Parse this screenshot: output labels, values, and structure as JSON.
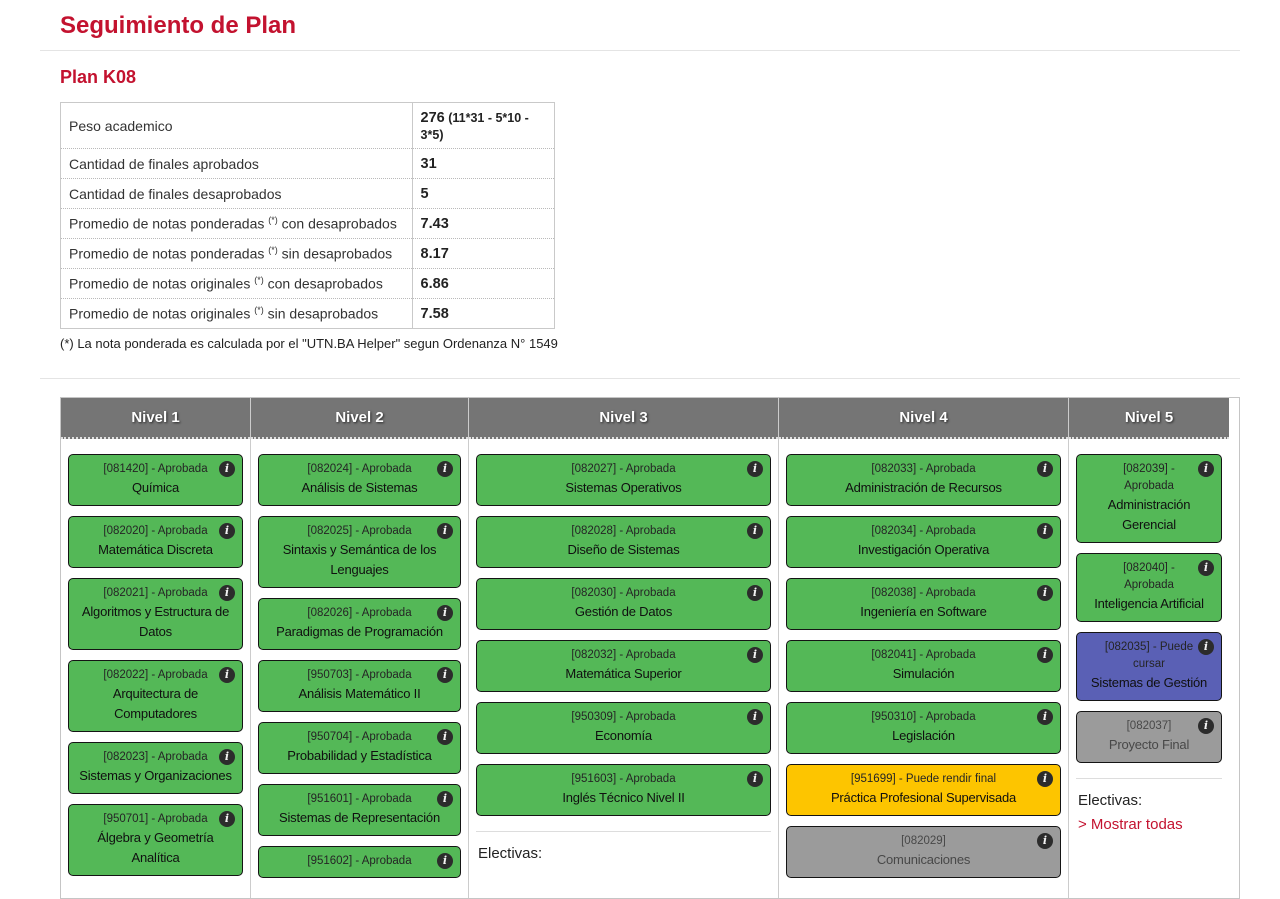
{
  "page": {
    "title": "Seguimiento de Plan",
    "plan_title": "Plan K08"
  },
  "colors": {
    "accent_red": "#c3122f",
    "approved_green": "#54b857",
    "can_take_blue": "#5a60b5",
    "final_yellow": "#fdc500",
    "unavailable_gray": "#9b9b9b",
    "header_gray": "#757575"
  },
  "stats": {
    "rows": [
      {
        "label_pre": "Peso academico",
        "sup": "",
        "label_post": "",
        "value": "276",
        "note": "(11*31 - 5*10 - 3*5)"
      },
      {
        "label_pre": "Cantidad de finales aprobados",
        "sup": "",
        "label_post": "",
        "value": "31",
        "note": ""
      },
      {
        "label_pre": "Cantidad de finales desaprobados",
        "sup": "",
        "label_post": "",
        "value": "5",
        "note": ""
      },
      {
        "label_pre": "Promedio de notas ponderadas ",
        "sup": "(*)",
        "label_post": " con desaprobados",
        "value": "7.43",
        "note": ""
      },
      {
        "label_pre": "Promedio de notas ponderadas ",
        "sup": "(*)",
        "label_post": " sin desaprobados",
        "value": "8.17",
        "note": ""
      },
      {
        "label_pre": "Promedio de notas originales ",
        "sup": "(*)",
        "label_post": " con desaprobados",
        "value": "6.86",
        "note": ""
      },
      {
        "label_pre": "Promedio de notas originales ",
        "sup": "(*)",
        "label_post": " sin desaprobados",
        "value": "7.58",
        "note": ""
      }
    ],
    "footnote": "(*) La nota ponderada es calculada por el \"UTN.BA Helper\" segun Ordenanza N° 1549"
  },
  "levels": {
    "electives_label": "Electivas:",
    "show_all_link": "> Mostrar todas",
    "columns": [
      {
        "header": "Nivel 1",
        "electives": false,
        "show_all": false,
        "cards": [
          {
            "code": "[081420]",
            "status": "Aprobada",
            "name": "Química",
            "state": "approved"
          },
          {
            "code": "[082020]",
            "status": "Aprobada",
            "name": "Matemática Discreta",
            "state": "approved"
          },
          {
            "code": "[082021]",
            "status": "Aprobada",
            "name": "Algoritmos y Estructura de Datos",
            "state": "approved"
          },
          {
            "code": "[082022]",
            "status": "Aprobada",
            "name": "Arquitectura de Computadores",
            "state": "approved"
          },
          {
            "code": "[082023]",
            "status": "Aprobada",
            "name": "Sistemas y Organizaciones",
            "state": "approved"
          },
          {
            "code": "[950701]",
            "status": "Aprobada",
            "name": "Álgebra y Geometría Analítica",
            "state": "approved"
          }
        ]
      },
      {
        "header": "Nivel 2",
        "electives": false,
        "show_all": false,
        "cards": [
          {
            "code": "[082024]",
            "status": "Aprobada",
            "name": "Análisis de Sistemas",
            "state": "approved"
          },
          {
            "code": "[082025]",
            "status": "Aprobada",
            "name": "Sintaxis y Semántica de los Lenguajes",
            "state": "approved"
          },
          {
            "code": "[082026]",
            "status": "Aprobada",
            "name": "Paradigmas de Programación",
            "state": "approved"
          },
          {
            "code": "[950703]",
            "status": "Aprobada",
            "name": "Análisis Matemático II",
            "state": "approved"
          },
          {
            "code": "[950704]",
            "status": "Aprobada",
            "name": "Probabilidad y Estadística",
            "state": "approved"
          },
          {
            "code": "[951601]",
            "status": "Aprobada",
            "name": "Sistemas de Representación",
            "state": "approved"
          },
          {
            "code": "[951602]",
            "status": "Aprobada",
            "name": "",
            "state": "approved"
          }
        ]
      },
      {
        "header": "Nivel 3",
        "electives": true,
        "show_all": false,
        "cards": [
          {
            "code": "[082027]",
            "status": "Aprobada",
            "name": "Sistemas Operativos",
            "state": "approved"
          },
          {
            "code": "[082028]",
            "status": "Aprobada",
            "name": "Diseño de Sistemas",
            "state": "approved"
          },
          {
            "code": "[082030]",
            "status": "Aprobada",
            "name": "Gestión de Datos",
            "state": "approved"
          },
          {
            "code": "[082032]",
            "status": "Aprobada",
            "name": "Matemática Superior",
            "state": "approved"
          },
          {
            "code": "[950309]",
            "status": "Aprobada",
            "name": "Economía",
            "state": "approved"
          },
          {
            "code": "[951603]",
            "status": "Aprobada",
            "name": "Inglés Técnico Nivel II",
            "state": "approved"
          }
        ]
      },
      {
        "header": "Nivel 4",
        "electives": false,
        "show_all": false,
        "cards": [
          {
            "code": "[082033]",
            "status": "Aprobada",
            "name": "Administración de Recursos",
            "state": "approved"
          },
          {
            "code": "[082034]",
            "status": "Aprobada",
            "name": "Investigación Operativa",
            "state": "approved"
          },
          {
            "code": "[082038]",
            "status": "Aprobada",
            "name": "Ingeniería en Software",
            "state": "approved"
          },
          {
            "code": "[082041]",
            "status": "Aprobada",
            "name": "Simulación",
            "state": "approved"
          },
          {
            "code": "[950310]",
            "status": "Aprobada",
            "name": "Legislación",
            "state": "approved"
          },
          {
            "code": "[951699]",
            "status": "Puede rendir final",
            "name": "Práctica Profesional Supervisada",
            "state": "final"
          },
          {
            "code": "[082029]",
            "status": "",
            "name": "Comunicaciones",
            "state": "none"
          }
        ]
      },
      {
        "header": "Nivel 5",
        "electives": true,
        "show_all": true,
        "cards": [
          {
            "code": "[082039]",
            "status": "Aprobada",
            "name": "Administración Gerencial",
            "state": "approved"
          },
          {
            "code": "[082040]",
            "status": "Aprobada",
            "name": "Inteligencia Artificial",
            "state": "approved"
          },
          {
            "code": "[082035]",
            "status": "Puede cursar",
            "name": "Sistemas de Gestión",
            "state": "can-take"
          },
          {
            "code": "[082037]",
            "status": "",
            "name": "Proyecto Final",
            "state": "none"
          }
        ]
      }
    ]
  }
}
